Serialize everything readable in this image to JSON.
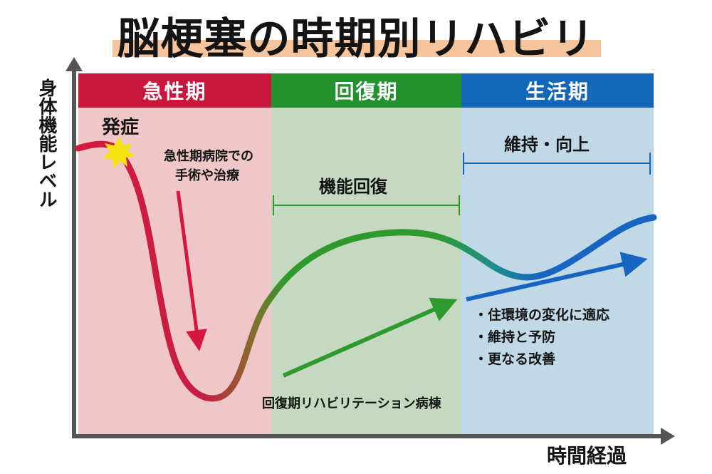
{
  "title": "脳梗塞の時期別リハビリ",
  "axes": {
    "y_label": "身体機能レベル",
    "x_label": "時間経過"
  },
  "phases": [
    {
      "name": "急性期",
      "header_color": "#c8163d",
      "bg_color": "#efc7c9"
    },
    {
      "name": "回復期",
      "header_color": "#23912e",
      "bg_color": "#c5d9c0"
    },
    {
      "name": "生活期",
      "header_color": "#1466b8",
      "bg_color": "#c1d8e7"
    }
  ],
  "annotations": {
    "onset": "発症",
    "acute_treatment_line1": "急性期病院での",
    "acute_treatment_line2": "手術や治療",
    "recovery_goal": "機能回復",
    "recovery_ward": "回復期リハビリテーション病棟",
    "maintenance_goal": "維持・向上",
    "life_items": [
      "・住環境の変化に適応",
      "・維持と予防",
      "・更なる改善"
    ]
  },
  "colors": {
    "curve_start": "#d8173f",
    "curve_mid": "#2e9a2e",
    "curve_end": "#1765c0",
    "burst": "#f7e211",
    "axis": "#555555"
  }
}
